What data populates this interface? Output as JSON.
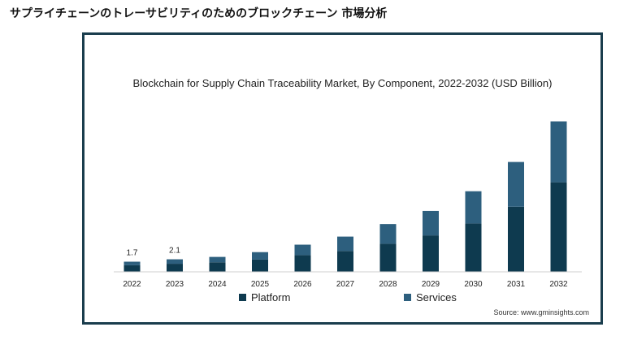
{
  "page": {
    "heading": "サプライチェーンのトレーサビリティのためのブロックチェーン 市場分析"
  },
  "chart_data": {
    "type": "bar",
    "stacked": true,
    "title": "Blockchain for Supply Chain Traceability Market, By Component, 2022-2032 (USD Billion)",
    "categories": [
      "2022",
      "2023",
      "2024",
      "2025",
      "2026",
      "2027",
      "2028",
      "2029",
      "2030",
      "2031",
      "2032"
    ],
    "series": [
      {
        "name": "Platform",
        "color": "#0e3a4f",
        "values": [
          1.1,
          1.35,
          1.6,
          2.05,
          2.8,
          3.5,
          4.7,
          6.1,
          8.1,
          10.9,
          15.0
        ]
      },
      {
        "name": "Services",
        "color": "#2d5f7e",
        "values": [
          0.6,
          0.75,
          0.9,
          1.25,
          1.75,
          2.4,
          3.3,
          4.1,
          5.4,
          7.5,
          10.2
        ]
      }
    ],
    "data_labels": [
      {
        "category": "2022",
        "text": "1.7"
      },
      {
        "category": "2023",
        "text": "2.1"
      }
    ],
    "ylim": [
      0,
      26.5
    ],
    "grid": false,
    "legend_position": "bottom",
    "source": "Source: www.gminsights.com"
  }
}
